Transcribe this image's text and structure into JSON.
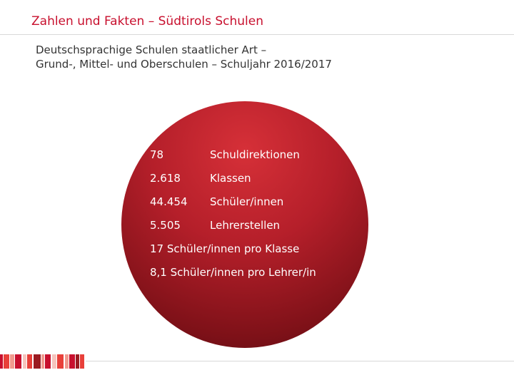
{
  "header": {
    "title": "Zahlen und Fakten – Südtirols Schulen"
  },
  "subtitle": {
    "line1": "Deutschsprachige Schulen staatlicher Art –",
    "line2": "Grund-, Mittel- und Oberschulen – Schuljahr 2016/2017"
  },
  "facts": [
    {
      "value": "78",
      "label": "Schuldirektionen"
    },
    {
      "value": "2.618",
      "label": "Klassen"
    },
    {
      "value": "44.454",
      "label": "Schüler/innen"
    },
    {
      "value": "5.505",
      "label": "Lehrerstellen"
    }
  ],
  "ratios": [
    "17 Schüler/innen pro Klasse",
    "8,1 Schüler/innen pro Lehrer/in"
  ],
  "colors": {
    "accent": "#c8102e",
    "disc_top": "#d63038",
    "disc_bottom": "#5b0c12",
    "stripe_palette": [
      "#c8102e",
      "#e8403a",
      "#f29a8f",
      "#f6c4bd",
      "#9b1b21"
    ]
  }
}
